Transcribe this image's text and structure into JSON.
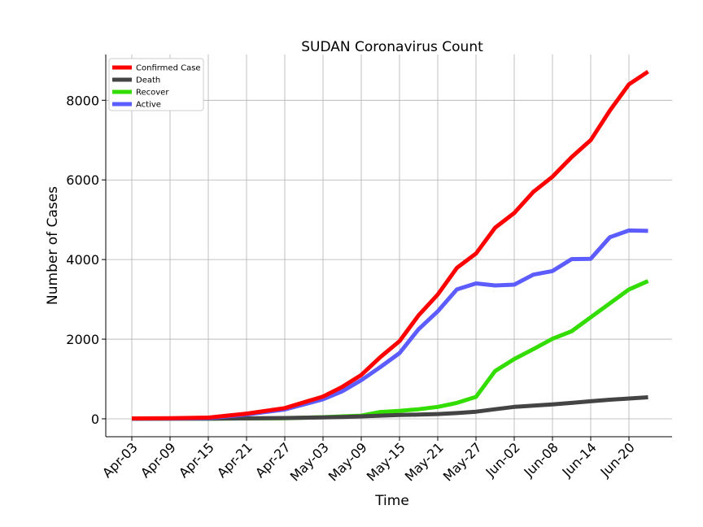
{
  "chart_data": {
    "type": "line",
    "title": "SUDAN Coronavirus Count",
    "xlabel": "Time",
    "ylabel": "Number of Cases",
    "ylim": [
      -450,
      9150
    ],
    "yticks": [
      0,
      2000,
      4000,
      6000,
      8000
    ],
    "xticks": [
      "Apr-03",
      "Apr-09",
      "Apr-15",
      "Apr-21",
      "Apr-27",
      "May-03",
      "May-09",
      "May-15",
      "May-21",
      "May-27",
      "Jun-02",
      "Jun-08",
      "Jun-14",
      "Jun-20"
    ],
    "grid": true,
    "legend_position": "top-left",
    "x": [
      "Apr-03",
      "Apr-09",
      "Apr-15",
      "Apr-21",
      "Apr-27",
      "May-03",
      "May-06",
      "May-09",
      "May-12",
      "May-15",
      "May-18",
      "May-21",
      "May-24",
      "May-27",
      "May-30",
      "Jun-02",
      "Jun-05",
      "Jun-08",
      "Jun-11",
      "Jun-14",
      "Jun-17",
      "Jun-20",
      "Jun-23"
    ],
    "series": [
      {
        "name": "Confirmed Case",
        "color": "#ff0000",
        "values": [
          10,
          15,
          30,
          130,
          270,
          560,
          800,
          1100,
          1550,
          1950,
          2600,
          3120,
          3790,
          4150,
          4800,
          5170,
          5700,
          6080,
          6570,
          7000,
          7740,
          8400,
          8720
        ]
      },
      {
        "name": "Death",
        "color": "#444444",
        "values": [
          2,
          4,
          6,
          12,
          20,
          35,
          45,
          60,
          80,
          95,
          105,
          120,
          145,
          180,
          240,
          300,
          330,
          360,
          400,
          440,
          480,
          510,
          540
        ]
      },
      {
        "name": "Recover",
        "color": "#33dd00",
        "values": [
          2,
          4,
          6,
          10,
          15,
          40,
          60,
          80,
          170,
          200,
          240,
          300,
          400,
          550,
          1200,
          1500,
          1750,
          2010,
          2200,
          2550,
          2900,
          3250,
          3460
        ]
      },
      {
        "name": "Active",
        "color": "#5c5cff",
        "values": [
          6,
          8,
          18,
          110,
          235,
          490,
          690,
          970,
          1300,
          1650,
          2250,
          2700,
          3250,
          3400,
          3350,
          3370,
          3620,
          3710,
          4010,
          4020,
          4560,
          4730,
          4720
        ]
      }
    ]
  }
}
